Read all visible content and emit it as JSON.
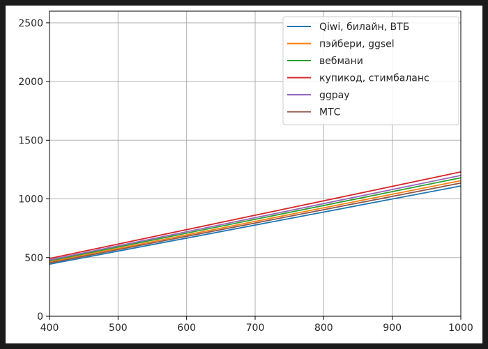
{
  "chart_data": {
    "type": "line",
    "title": "",
    "xlabel": "",
    "ylabel": "",
    "xlim": [
      400,
      1000
    ],
    "ylim": [
      0,
      2600
    ],
    "grid": true,
    "legend_position": "upper-right",
    "x_ticks": [
      400,
      500,
      600,
      700,
      800,
      900,
      1000
    ],
    "y_ticks": [
      0,
      500,
      1000,
      1500,
      2000,
      2500
    ],
    "x": [
      400,
      1000
    ],
    "series": [
      {
        "name": "Qiwi, билайн, ВТБ",
        "color": "#1f77b4",
        "values": [
          444,
          1110
        ]
      },
      {
        "name": "пэйбери, ggsel",
        "color": "#ff7f0e",
        "values": [
          462,
          1155
        ]
      },
      {
        "name": "вебмани",
        "color": "#2ca02c",
        "values": [
          472,
          1180
        ]
      },
      {
        "name": "купикод, стимбаланс",
        "color": "#d62728",
        "values": [
          492,
          1230
        ]
      },
      {
        "name": "ggpay",
        "color": "#9467bd",
        "values": [
          480,
          1200
        ]
      },
      {
        "name": "МТС",
        "color": "#8c564b",
        "values": [
          454,
          1135
        ]
      }
    ]
  }
}
